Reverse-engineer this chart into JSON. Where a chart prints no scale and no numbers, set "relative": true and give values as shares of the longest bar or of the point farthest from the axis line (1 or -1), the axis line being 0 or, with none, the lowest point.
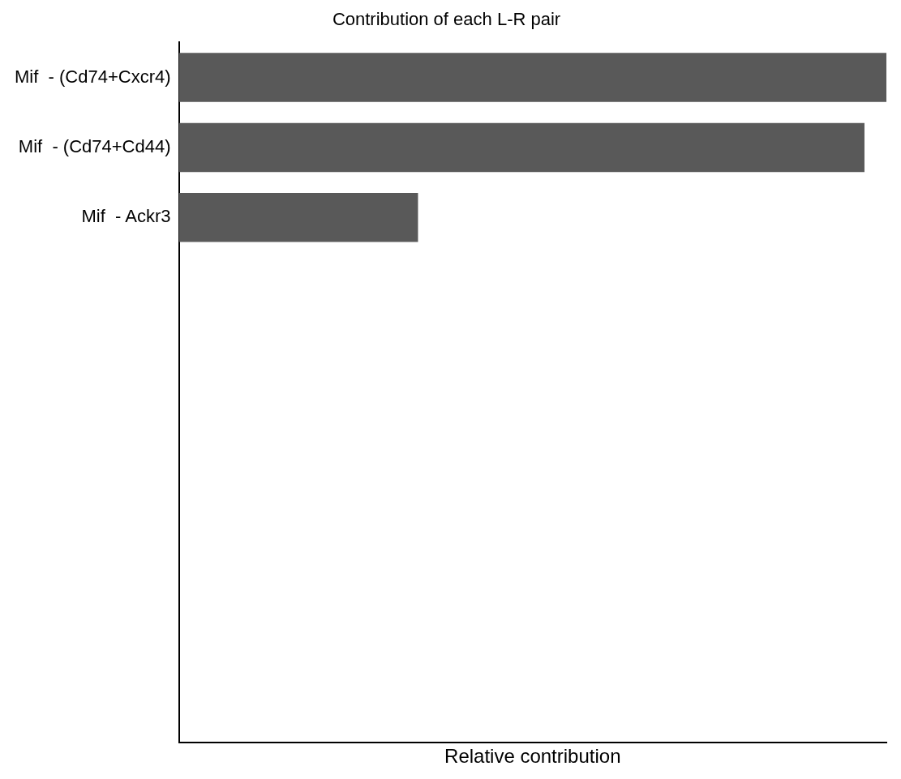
{
  "chart_data": {
    "type": "bar",
    "orientation": "horizontal",
    "relative": true,
    "title": "Contribution of each L-R pair",
    "xlabel": "Relative contribution",
    "categories": [
      "Mif  - (Cd74+Cxcr4)",
      "Mif  - (Cd74+Cd44)",
      "Mif  - Ackr3",
      null,
      null,
      null,
      null,
      null,
      null,
      null
    ],
    "values": [
      1,
      0.969,
      0.338,
      null,
      null,
      null,
      null,
      null,
      null,
      null
    ],
    "color": "#595959",
    "grid": false,
    "legend": false
  }
}
